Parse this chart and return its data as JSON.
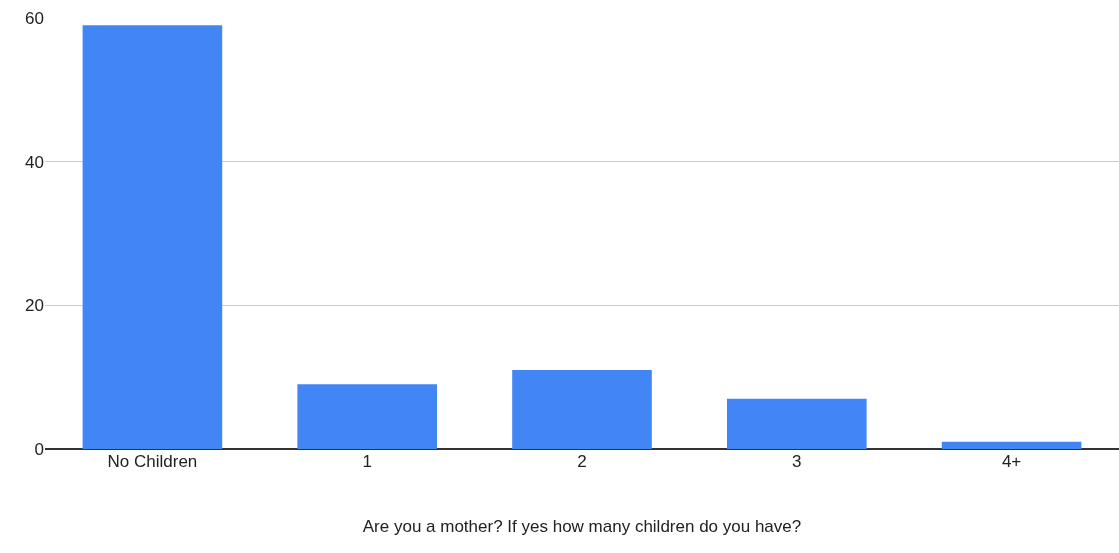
{
  "chart_data": {
    "type": "bar",
    "xlabel": "Are you a mother? If yes how many children do you have?",
    "categories": [
      "No Children",
      "1",
      "2",
      "3",
      "4+"
    ],
    "values": [
      59,
      9,
      11,
      7,
      1
    ],
    "color": "#4285f4",
    "ylim": [
      0,
      60
    ],
    "yticks": [
      0,
      20,
      40,
      60
    ],
    "grid": "y",
    "legend": false
  }
}
